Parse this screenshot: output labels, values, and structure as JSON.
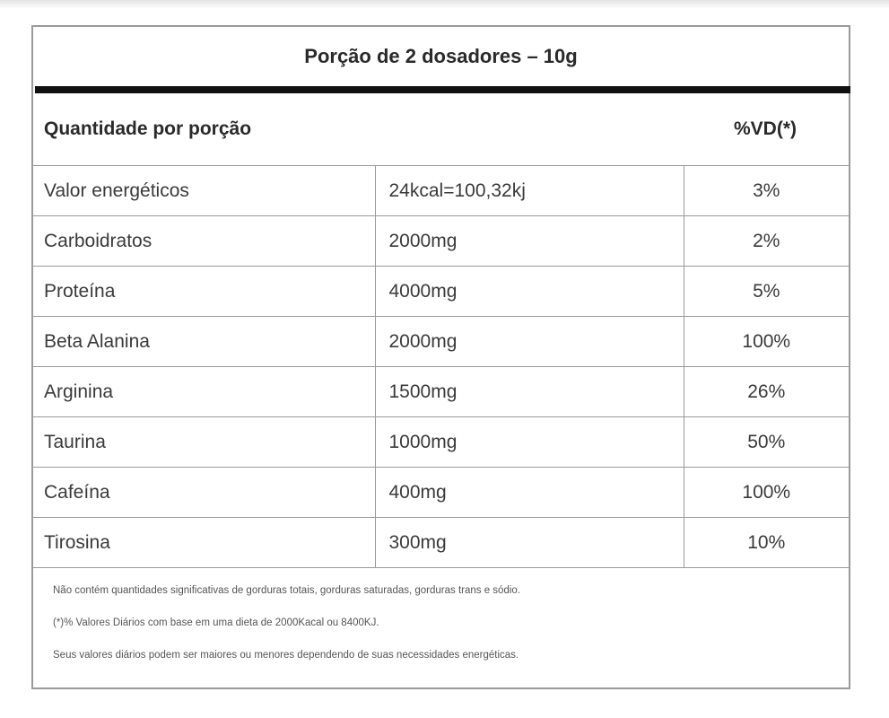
{
  "serving_title": "Porção de 2 dosadores – 10g",
  "header": {
    "quantity_label": "Quantidade por porção",
    "dv_label": "%VD(*)"
  },
  "rows": [
    {
      "name": "Valor energéticos",
      "amount": "24kcal=100,32kj",
      "dv": "3%"
    },
    {
      "name": "Carboidratos",
      "amount": "2000mg",
      "dv": "2%"
    },
    {
      "name": "Proteína",
      "amount": "4000mg",
      "dv": "5%"
    },
    {
      "name": "Beta Alanina",
      "amount": "2000mg",
      "dv": "100%"
    },
    {
      "name": "Arginina",
      "amount": "1500mg",
      "dv": "26%"
    },
    {
      "name": "Taurina",
      "amount": "1000mg",
      "dv": "50%"
    },
    {
      "name": "Cafeína",
      "amount": "400mg",
      "dv": "100%"
    },
    {
      "name": "Tirosina",
      "amount": "300mg",
      "dv": "10%"
    }
  ],
  "footnotes": [
    "Não contém quantidades significativas de gorduras totais, gorduras saturadas, gorduras trans e sódio.",
    "(*)% Valores Diários com base em uma dieta de 2000Kacal ou 8400KJ.",
    "Seus valores diários podem ser maiores ou menores dependendo de suas necessidades energéticas."
  ]
}
